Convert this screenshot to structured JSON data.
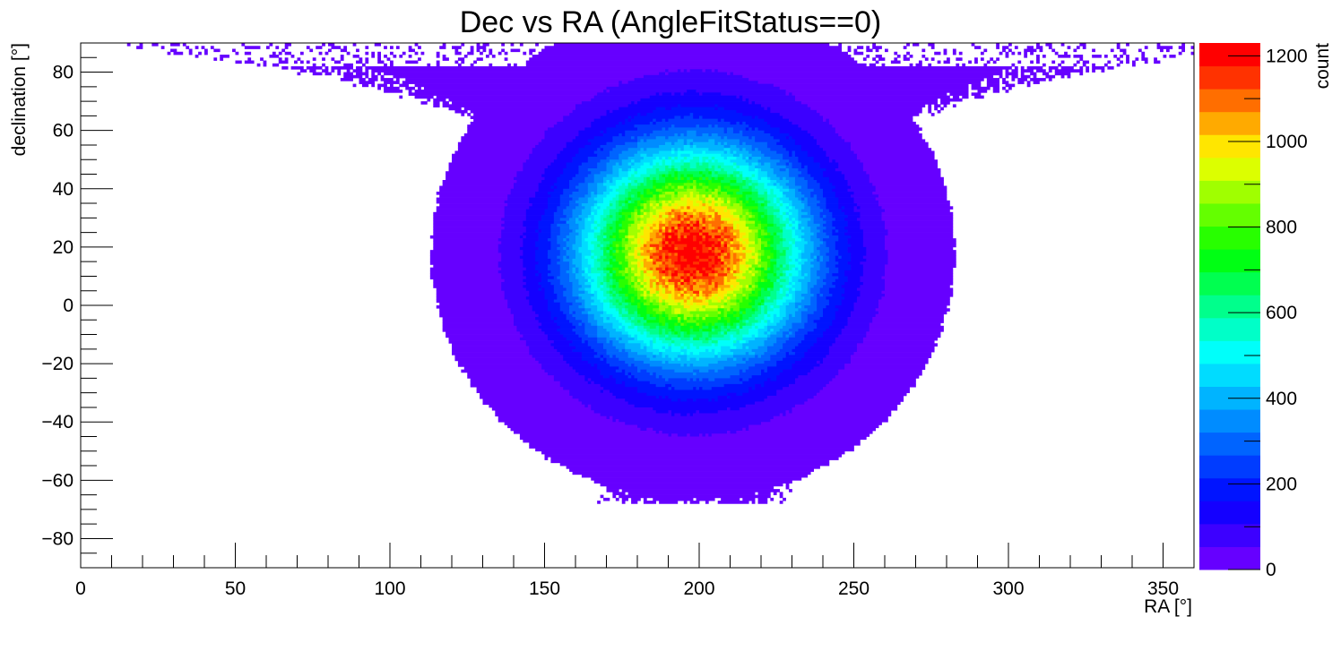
{
  "chart_data": {
    "type": "heatmap",
    "title": "Dec vs RA (AngleFitStatus==0)",
    "xlabel": "RA [°]",
    "ylabel": "declination [°]",
    "zlabel": "count",
    "xlim": [
      0,
      360
    ],
    "ylim": [
      -90,
      90
    ],
    "zlim": [
      0,
      1230
    ],
    "x_ticks": [
      0,
      50,
      100,
      150,
      200,
      250,
      300,
      350
    ],
    "y_ticks": [
      -80,
      -60,
      -40,
      -20,
      0,
      20,
      40,
      60,
      80
    ],
    "z_ticks": [
      0,
      200,
      400,
      600,
      800,
      1000,
      1200
    ],
    "grid": false,
    "peak": {
      "ra": 198,
      "dec": 18,
      "count": 1230
    },
    "core_sigma": {
      "ra": 25,
      "dec": 25
    },
    "coverage_extent": {
      "dec_min": -68,
      "dec_max": 90,
      "ra_min_at_top": 0,
      "ra_max_at_top": 360
    },
    "palette": [
      "#6600ff",
      "#3c00ff",
      "#1400ff",
      "#0014ff",
      "#003cff",
      "#0064ff",
      "#008cff",
      "#00b4ff",
      "#00dcff",
      "#00fffa",
      "#00ffc8",
      "#00ff8c",
      "#00ff50",
      "#00ff14",
      "#28ff00",
      "#64ff00",
      "#a0ff00",
      "#dcff00",
      "#ffe600",
      "#ffaa00",
      "#ff6e00",
      "#ff3200",
      "#ff0000"
    ]
  }
}
